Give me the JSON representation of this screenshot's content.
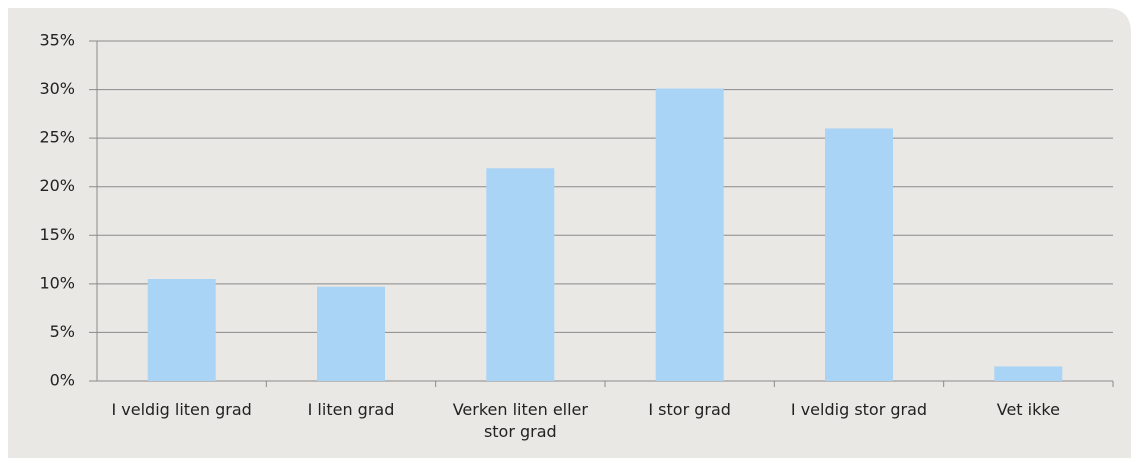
{
  "chart_data": {
    "type": "bar",
    "categories": [
      "I veldig liten grad",
      "I liten grad",
      "Verken liten eller stor grad",
      "I stor grad",
      "I veldig stor grad",
      "Vet ikke"
    ],
    "values": [
      10.5,
      9.7,
      21.9,
      30.1,
      26.0,
      1.5
    ],
    "color": "#a9d4f5",
    "ylim": [
      0,
      35
    ],
    "yticks": [
      {
        "value": 0,
        "label": "0%"
      },
      {
        "value": 5,
        "label": "5%"
      },
      {
        "value": 10,
        "label": "10%"
      },
      {
        "value": 15,
        "label": "15%"
      },
      {
        "value": 20,
        "label": "20%"
      },
      {
        "value": 25,
        "label": "25%"
      },
      {
        "value": 30,
        "label": "30%"
      },
      {
        "value": 35,
        "label": "35%"
      }
    ],
    "grid": true
  }
}
